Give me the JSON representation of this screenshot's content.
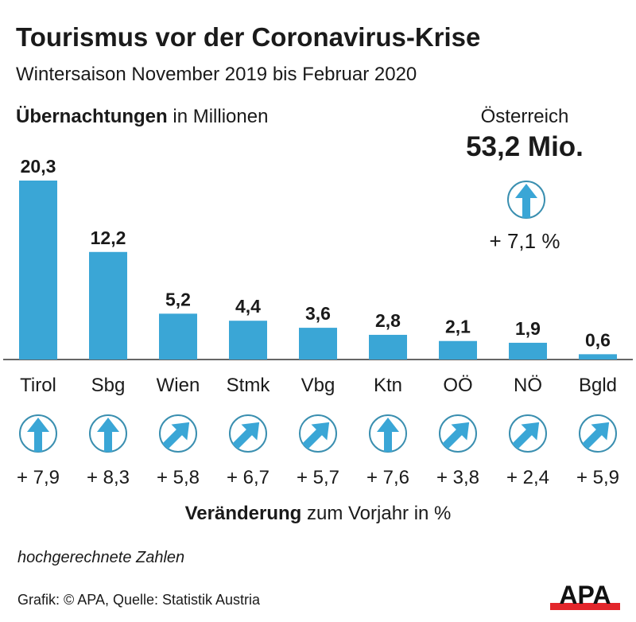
{
  "title": "Tourismus vor der Coronavirus-Krise",
  "subtitle": "Wintersaison November 2019 bis Februar 2020",
  "metric_bold": "Übernachtungen",
  "metric_rest": " in Millionen",
  "summary": {
    "label": "Österreich",
    "total": "53,2 Mio.",
    "change": "+ 7,1 %",
    "trend": "up"
  },
  "change_label_bold": "Veränderung",
  "change_label_rest": " zum Vorjahr in %",
  "note": "hochgerechnete Zahlen",
  "source": "Grafik: © APA, Quelle: Statistik Austria",
  "logo": "APA",
  "colors": {
    "bar": "#3aa6d6",
    "circle": "#3a8fb0",
    "logo_red": "#e3262b"
  },
  "chart_data": {
    "type": "bar",
    "title": "Tourismus vor der Coronavirus-Krise",
    "ylabel": "Übernachtungen in Millionen",
    "categories": [
      "Tirol",
      "Sbg",
      "Wien",
      "Stmk",
      "Vbg",
      "Ktn",
      "OÖ",
      "NÖ",
      "Bgld"
    ],
    "values": [
      20.3,
      12.2,
      5.2,
      4.4,
      3.6,
      2.8,
      2.1,
      1.9,
      0.6
    ],
    "value_labels": [
      "20,3",
      "12,2",
      "5,2",
      "4,4",
      "3,6",
      "2,8",
      "2,1",
      "1,9",
      "0,6"
    ],
    "changes": [
      "+ 7,9",
      "+ 8,3",
      "+ 5,8",
      "+ 6,7",
      "+ 5,7",
      "+ 7,6",
      "+ 3,8",
      "+ 2,4",
      "+ 5,9"
    ],
    "change_icons": [
      "up",
      "up",
      "up-right",
      "up-right",
      "up-right",
      "up",
      "up-right",
      "up-right",
      "up-right"
    ],
    "ylim": [
      0,
      20.3
    ]
  }
}
